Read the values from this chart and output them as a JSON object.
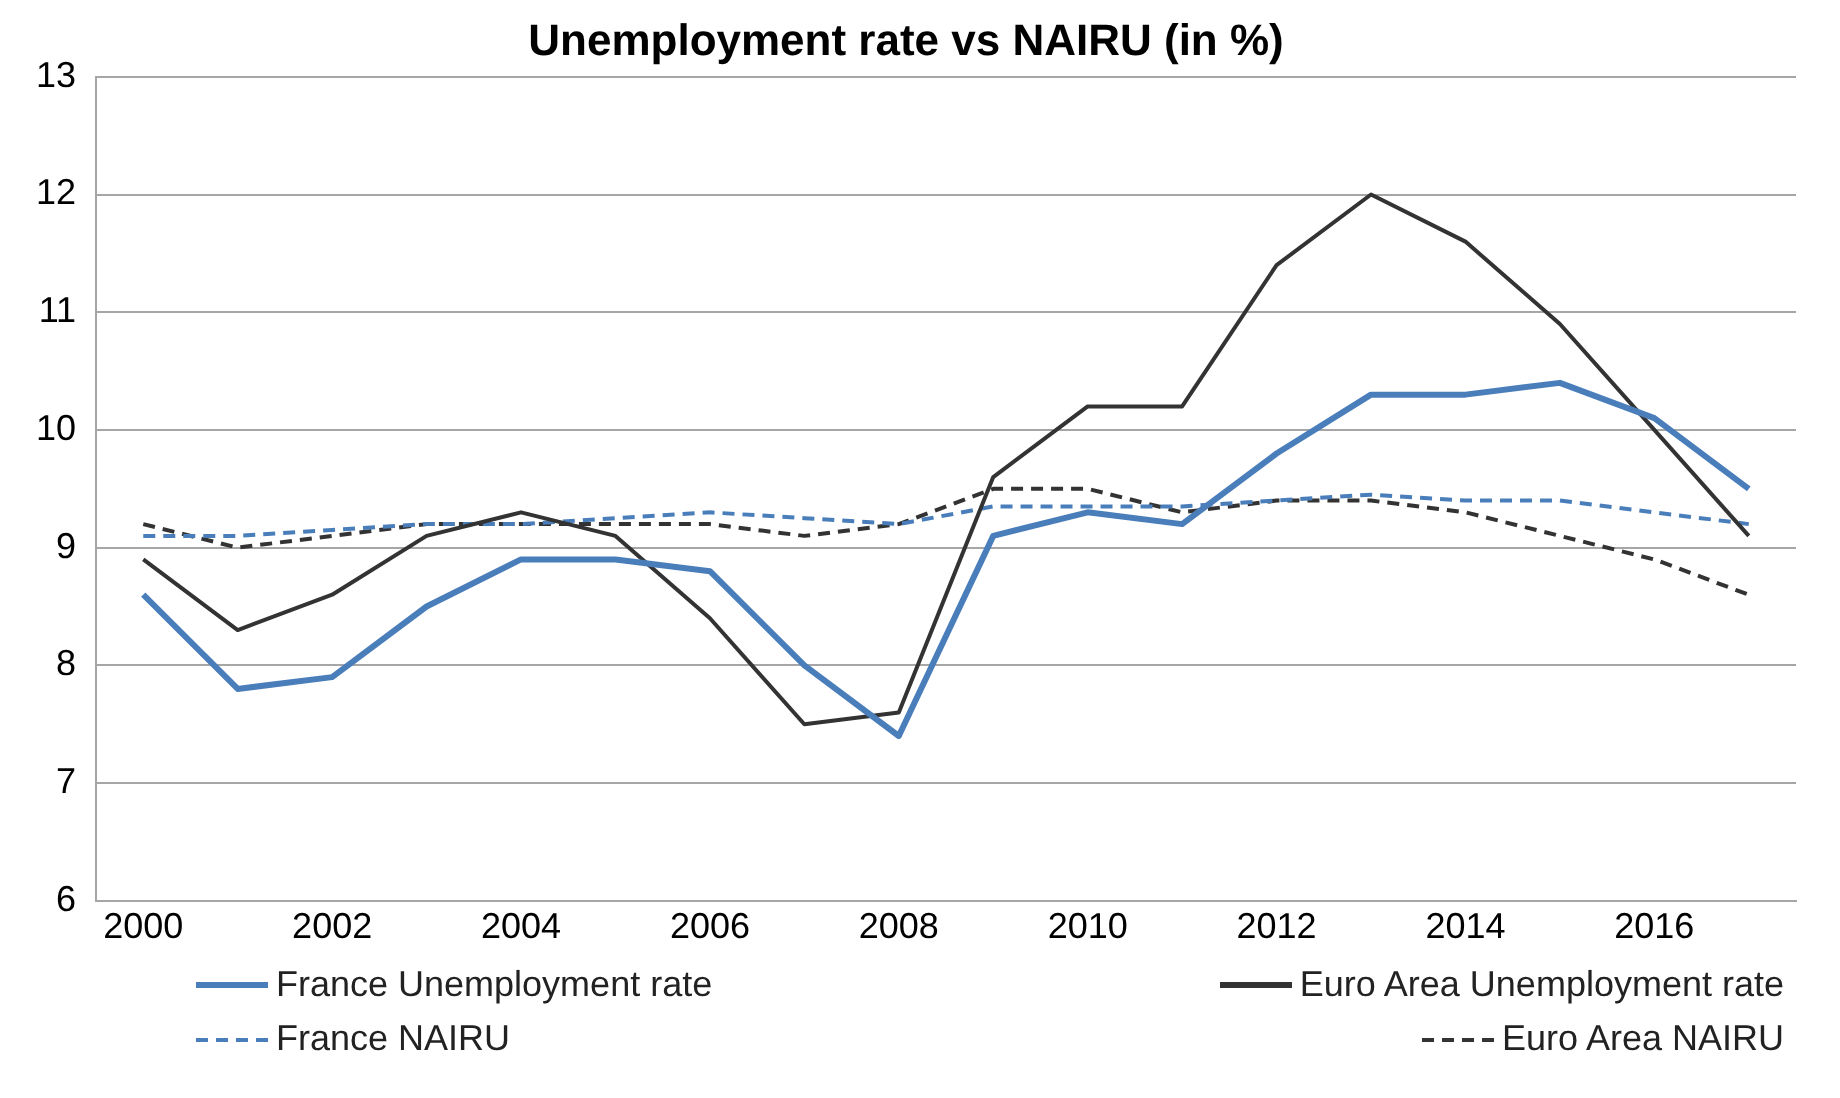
{
  "chart_data": {
    "type": "line",
    "title": "Unemployment rate vs NAIRU (in %)",
    "x": [
      2000,
      2001,
      2002,
      2003,
      2004,
      2005,
      2006,
      2007,
      2008,
      2009,
      2010,
      2011,
      2012,
      2013,
      2014,
      2015,
      2016,
      2017
    ],
    "series": [
      {
        "name": "France Unemployment rate",
        "color": "#4a7ebb",
        "line_style": "solid",
        "values": [
          8.6,
          7.8,
          7.9,
          8.5,
          8.9,
          8.9,
          8.8,
          8.0,
          7.4,
          9.1,
          9.3,
          9.2,
          9.8,
          10.3,
          10.3,
          10.4,
          10.1,
          9.5
        ]
      },
      {
        "name": "Euro Area Unemployment rate",
        "color": "#333333",
        "line_style": "solid",
        "values": [
          8.9,
          8.3,
          8.6,
          9.1,
          9.3,
          9.1,
          8.4,
          7.5,
          7.6,
          9.6,
          10.2,
          10.2,
          11.4,
          12.0,
          11.6,
          10.9,
          10.0,
          9.1
        ]
      },
      {
        "name": "France NAIRU",
        "color": "#4a7ebb",
        "line_style": "dashed",
        "values": [
          9.1,
          9.1,
          9.15,
          9.2,
          9.2,
          9.25,
          9.3,
          9.25,
          9.2,
          9.35,
          9.35,
          9.35,
          9.4,
          9.45,
          9.4,
          9.4,
          9.3,
          9.2
        ]
      },
      {
        "name": "Euro Area NAIRU",
        "color": "#333333",
        "line_style": "dashed",
        "values": [
          9.2,
          9.0,
          9.1,
          9.2,
          9.2,
          9.2,
          9.2,
          9.1,
          9.2,
          9.5,
          9.5,
          9.3,
          9.4,
          9.4,
          9.3,
          9.1,
          8.9,
          8.6
        ]
      }
    ],
    "xlim": [
      1999.5,
      2017.5
    ],
    "xticks": [
      2000,
      2002,
      2004,
      2006,
      2008,
      2010,
      2012,
      2014,
      2016
    ],
    "ylim": [
      6,
      13
    ],
    "yticks": [
      6,
      7,
      8,
      9,
      10,
      11,
      12,
      13
    ],
    "grid": "y",
    "legend": "bottom",
    "marker": "none"
  }
}
